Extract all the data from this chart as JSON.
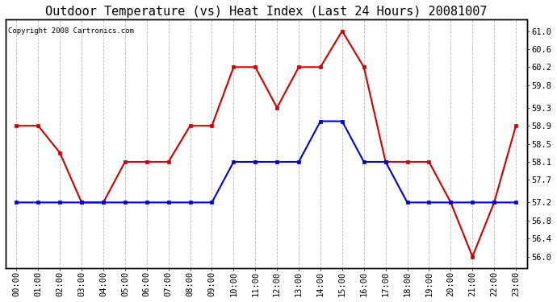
{
  "title": "Outdoor Temperature (vs) Heat Index (Last 24 Hours) 20081007",
  "copyright_text": "Copyright 2008 Cartronics.com",
  "hours": [
    "00:00",
    "01:00",
    "02:00",
    "03:00",
    "04:00",
    "05:00",
    "06:00",
    "07:00",
    "08:00",
    "09:00",
    "10:00",
    "11:00",
    "12:00",
    "13:00",
    "14:00",
    "15:00",
    "16:00",
    "17:00",
    "18:00",
    "19:00",
    "20:00",
    "21:00",
    "22:00",
    "23:00"
  ],
  "red_values": [
    58.9,
    58.9,
    58.3,
    57.2,
    57.2,
    58.1,
    58.1,
    58.1,
    58.9,
    58.9,
    60.2,
    60.2,
    59.3,
    60.2,
    60.2,
    61.0,
    60.2,
    58.1,
    58.1,
    58.1,
    57.2,
    56.0,
    57.2,
    58.9
  ],
  "blue_values": [
    57.2,
    57.2,
    57.2,
    57.2,
    57.2,
    57.2,
    57.2,
    57.2,
    57.2,
    57.2,
    58.1,
    58.1,
    58.1,
    58.1,
    59.0,
    59.0,
    58.1,
    58.1,
    57.2,
    57.2,
    57.2,
    57.2,
    57.2,
    57.2
  ],
  "red_color": "#cc0000",
  "blue_color": "#0000cc",
  "background_color": "#ffffff",
  "plot_bg_color": "#ffffff",
  "grid_color": "#b0b0b0",
  "ylim": [
    55.75,
    61.25
  ],
  "yticks": [
    56.0,
    56.4,
    56.8,
    57.2,
    57.7,
    58.1,
    58.5,
    58.9,
    59.3,
    59.8,
    60.2,
    60.6,
    61.0
  ],
  "title_fontsize": 11,
  "copyright_fontsize": 6.5,
  "tick_fontsize": 7.5,
  "marker_size": 3,
  "line_width": 1.5
}
